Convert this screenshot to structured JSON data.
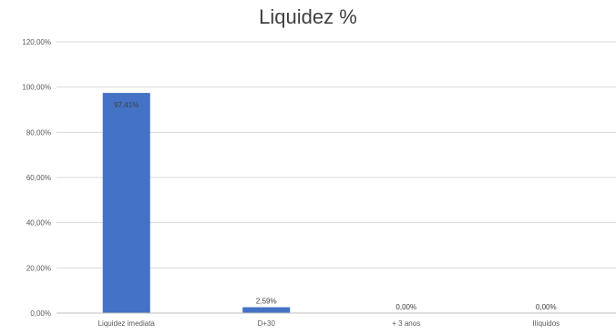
{
  "chart_data": {
    "type": "bar",
    "title": "Liquidez %",
    "xlabel": "",
    "ylabel": "",
    "categories": [
      "Liquidez imediata",
      "D+30",
      "+ 3 anos",
      "Ilíquidos"
    ],
    "values": [
      97.41,
      2.59,
      0.0,
      0.0
    ],
    "data_labels": [
      "97,41%",
      "2,59%",
      "0,00%",
      "0,00%"
    ],
    "y_ticks": [
      0,
      20,
      40,
      60,
      80,
      100,
      120
    ],
    "y_tick_labels": [
      "0,00%",
      "20,00%",
      "40,00%",
      "60,00%",
      "80,00%",
      "100,00%",
      "120,00%"
    ],
    "ylim": [
      0,
      120
    ],
    "grid": true,
    "legend": "none",
    "bar_color": "#4472C4",
    "grid_color": "#D9D9D9"
  }
}
